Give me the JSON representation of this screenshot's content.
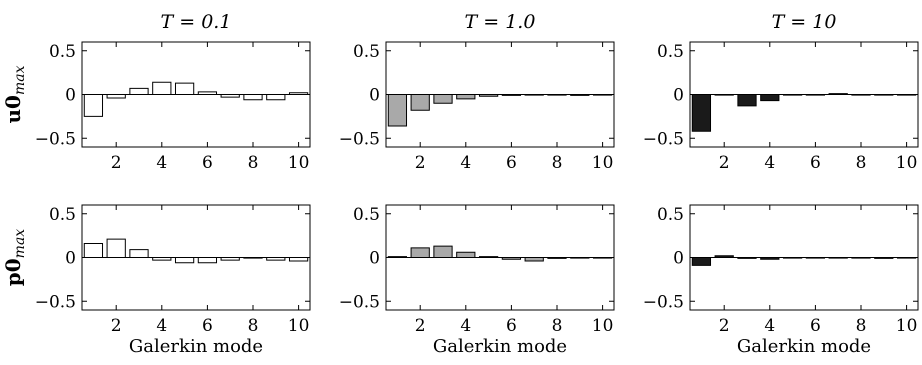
{
  "colors": {
    "T=0.1": "#ffffff",
    "T=1.0": "#a9a9a9",
    "T=10": "#1a1a1a",
    "stroke": "#000000"
  },
  "chart_data": [
    {
      "type": "bar",
      "row": 0,
      "col": 0,
      "title": "T = 0.1",
      "ylabel": "u0max",
      "xlabel": "",
      "categories": [
        1,
        2,
        3,
        4,
        5,
        6,
        7,
        8,
        9,
        10
      ],
      "values": [
        -0.25,
        -0.04,
        0.07,
        0.14,
        0.13,
        0.03,
        -0.03,
        -0.06,
        -0.06,
        0.02
      ],
      "xlim": [
        0.5,
        10.5
      ],
      "ylim": [
        -0.6,
        0.6
      ],
      "xticks": [
        2,
        4,
        6,
        8,
        10
      ],
      "yticks": [
        0.5,
        0,
        -0.5
      ],
      "ytick_labels": [
        "0.5",
        "0",
        "−0.5"
      ],
      "bar_color": "#ffffff"
    },
    {
      "type": "bar",
      "row": 0,
      "col": 1,
      "title": "T = 1.0",
      "ylabel": "",
      "xlabel": "",
      "categories": [
        1,
        2,
        3,
        4,
        5,
        6,
        7,
        8,
        9,
        10
      ],
      "values": [
        -0.36,
        -0.18,
        -0.1,
        -0.05,
        -0.02,
        -0.01,
        0.0,
        0.0,
        -0.01,
        0.0
      ],
      "xlim": [
        0.5,
        10.5
      ],
      "ylim": [
        -0.6,
        0.6
      ],
      "xticks": [
        2,
        4,
        6,
        8,
        10
      ],
      "yticks": [
        0.5,
        0,
        -0.5
      ],
      "ytick_labels": [
        "0.5",
        "0",
        "−0.5"
      ],
      "bar_color": "#a9a9a9"
    },
    {
      "type": "bar",
      "row": 0,
      "col": 2,
      "title": "T = 10",
      "ylabel": "",
      "xlabel": "",
      "categories": [
        1,
        2,
        3,
        4,
        5,
        6,
        7,
        8,
        9,
        10
      ],
      "values": [
        -0.42,
        0.0,
        -0.13,
        -0.07,
        0.0,
        0.0,
        0.01,
        0.0,
        0.0,
        0.0
      ],
      "xlim": [
        0.5,
        10.5
      ],
      "ylim": [
        -0.6,
        0.6
      ],
      "xticks": [
        2,
        4,
        6,
        8,
        10
      ],
      "yticks": [
        0.5,
        0,
        -0.5
      ],
      "ytick_labels": [
        "0.5",
        "0",
        "−0.5"
      ],
      "bar_color": "#1a1a1a"
    },
    {
      "type": "bar",
      "row": 1,
      "col": 0,
      "title": "",
      "ylabel": "p0max",
      "xlabel": "Galerkin mode",
      "categories": [
        1,
        2,
        3,
        4,
        5,
        6,
        7,
        8,
        9,
        10
      ],
      "values": [
        0.16,
        0.21,
        0.09,
        -0.03,
        -0.06,
        -0.06,
        -0.03,
        0.0,
        -0.03,
        -0.04
      ],
      "xlim": [
        0.5,
        10.5
      ],
      "ylim": [
        -0.6,
        0.6
      ],
      "xticks": [
        2,
        4,
        6,
        8,
        10
      ],
      "yticks": [
        0.5,
        0,
        -0.5
      ],
      "ytick_labels": [
        "0.5",
        "0",
        "−0.5"
      ],
      "bar_color": "#ffffff"
    },
    {
      "type": "bar",
      "row": 1,
      "col": 1,
      "title": "",
      "ylabel": "",
      "xlabel": "Galerkin mode",
      "categories": [
        1,
        2,
        3,
        4,
        5,
        6,
        7,
        8,
        9,
        10
      ],
      "values": [
        0.01,
        0.11,
        0.13,
        0.06,
        0.01,
        -0.02,
        -0.04,
        -0.01,
        0.0,
        0.0
      ],
      "xlim": [
        0.5,
        10.5
      ],
      "ylim": [
        -0.6,
        0.6
      ],
      "xticks": [
        2,
        4,
        6,
        8,
        10
      ],
      "yticks": [
        0.5,
        0,
        -0.5
      ],
      "ytick_labels": [
        "0.5",
        "0",
        "−0.5"
      ],
      "bar_color": "#a9a9a9"
    },
    {
      "type": "bar",
      "row": 1,
      "col": 2,
      "title": "",
      "ylabel": "",
      "xlabel": "Galerkin mode",
      "categories": [
        1,
        2,
        3,
        4,
        5,
        6,
        7,
        8,
        9,
        10
      ],
      "values": [
        -0.09,
        0.02,
        -0.01,
        -0.02,
        0.0,
        0.0,
        0.0,
        0.0,
        -0.01,
        0.0
      ],
      "xlim": [
        0.5,
        10.5
      ],
      "ylim": [
        -0.6,
        0.6
      ],
      "xticks": [
        2,
        4,
        6,
        8,
        10
      ],
      "yticks": [
        0.5,
        0,
        -0.5
      ],
      "ytick_labels": [
        "0.5",
        "0",
        "−0.5"
      ],
      "bar_color": "#1a1a1a"
    }
  ]
}
